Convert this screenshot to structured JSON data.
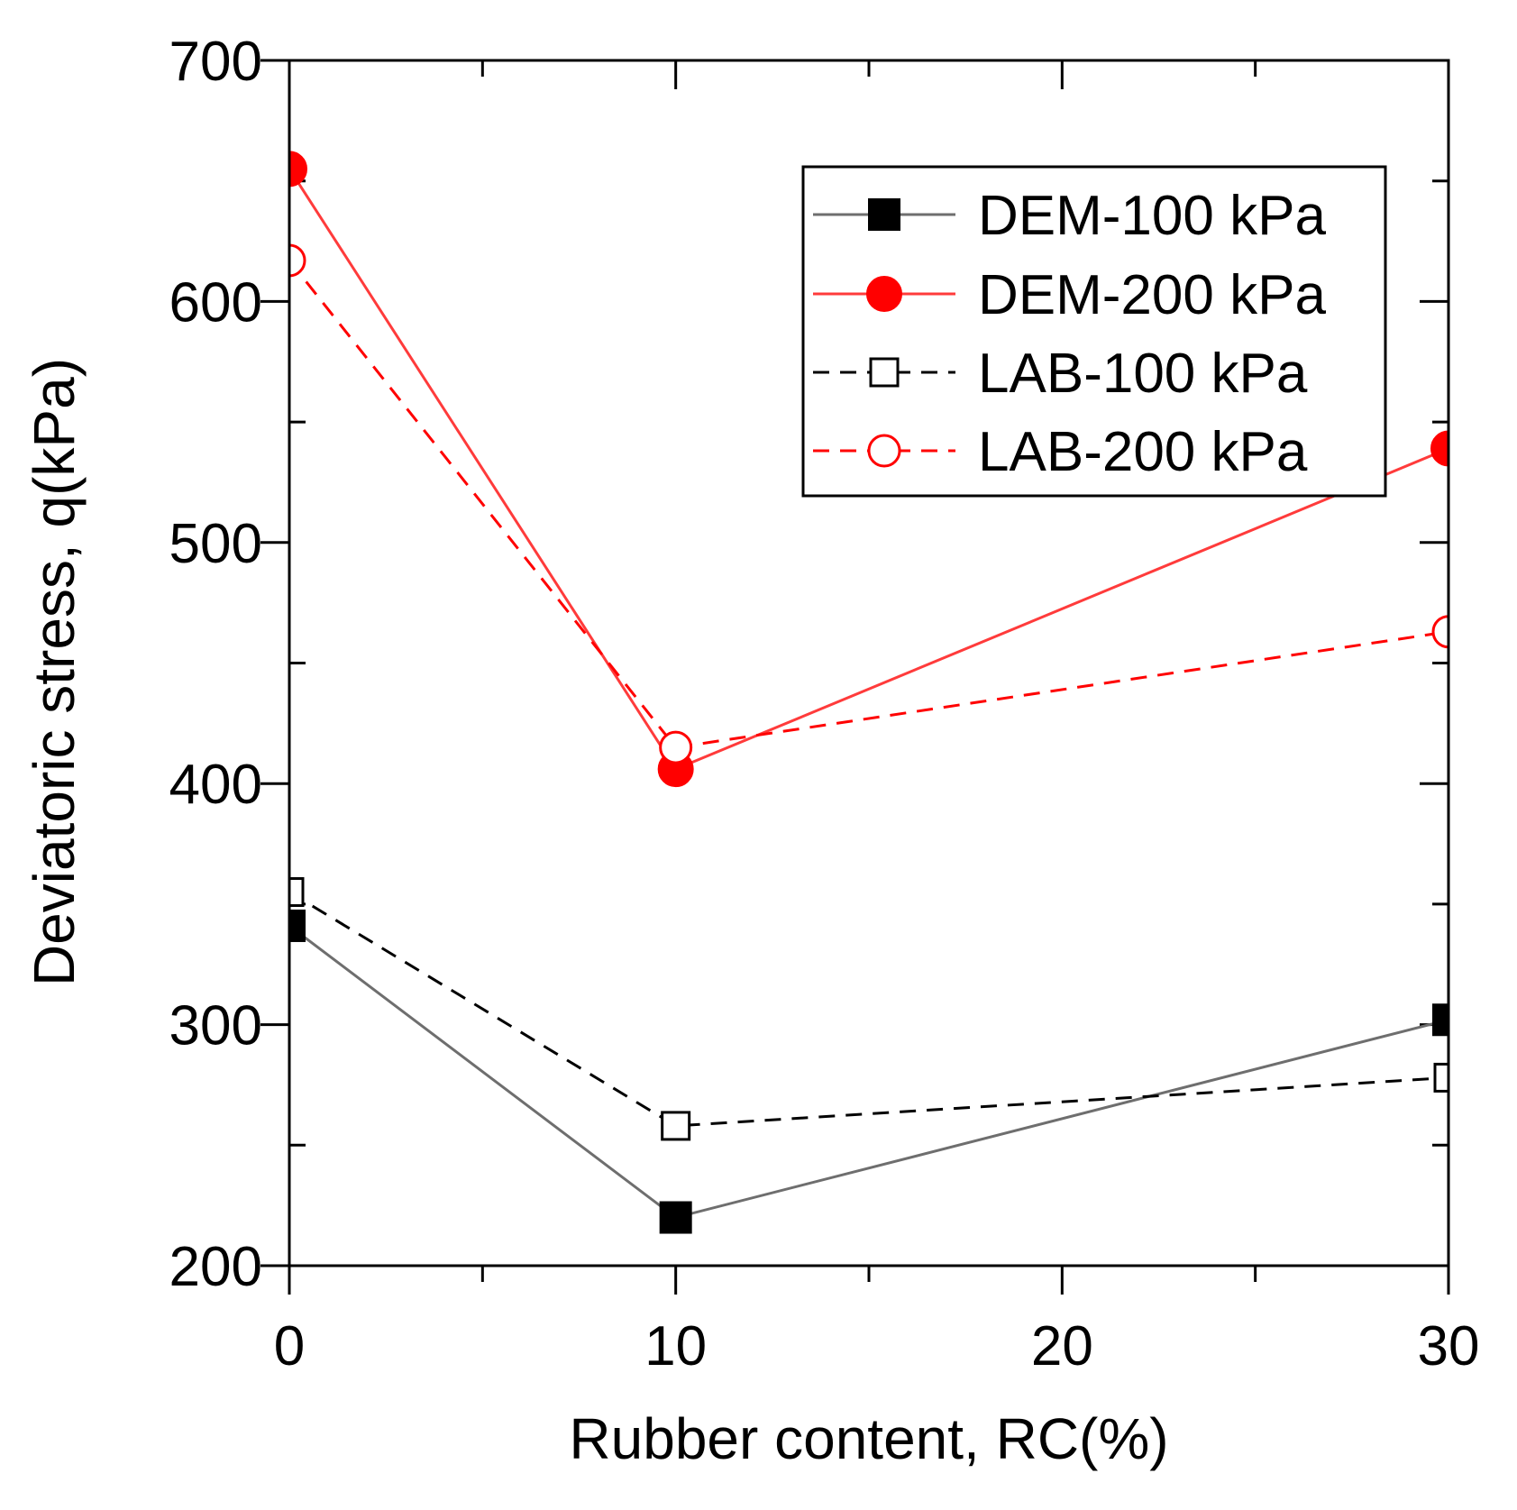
{
  "chart_data": {
    "type": "line",
    "title": "",
    "xlabel": "Rubber content, RC(%)",
    "ylabel": "Deviatoric stress, q(kPa)",
    "xlim": [
      0,
      30
    ],
    "ylim": [
      200,
      700
    ],
    "xticks": [
      0,
      10,
      20,
      30
    ],
    "xtick_labels": [
      "0",
      "10",
      "20",
      "30"
    ],
    "xminor": [
      5,
      15,
      25
    ],
    "yticks": [
      200,
      300,
      400,
      500,
      600,
      700
    ],
    "ytick_labels": [
      "200",
      "300",
      "400",
      "500",
      "600",
      "700"
    ],
    "yminor": [
      250,
      350,
      450,
      550,
      650
    ],
    "grid": false,
    "legend_position": "top-right",
    "x": [
      0,
      10,
      30
    ],
    "series": [
      {
        "name": "DEM-100 kPa",
        "values": [
          341,
          220,
          302
        ],
        "color": "#6e6e6e",
        "marker_color": "#000000",
        "marker": "square",
        "filled": true,
        "dashed": false
      },
      {
        "name": "DEM-200 kPa",
        "values": [
          655,
          406,
          539
        ],
        "color": "#ff3b3b",
        "marker_color": "#ff0000",
        "marker": "circle",
        "filled": true,
        "dashed": false
      },
      {
        "name": "LAB-100 kPa",
        "values": [
          355,
          258,
          278
        ],
        "color": "#000000",
        "marker_color": "#000000",
        "marker": "square",
        "filled": false,
        "dashed": true
      },
      {
        "name": "LAB-200 kPa",
        "values": [
          617,
          415,
          463
        ],
        "color": "#ff0000",
        "marker_color": "#ff0000",
        "marker": "circle",
        "filled": false,
        "dashed": true
      }
    ]
  }
}
